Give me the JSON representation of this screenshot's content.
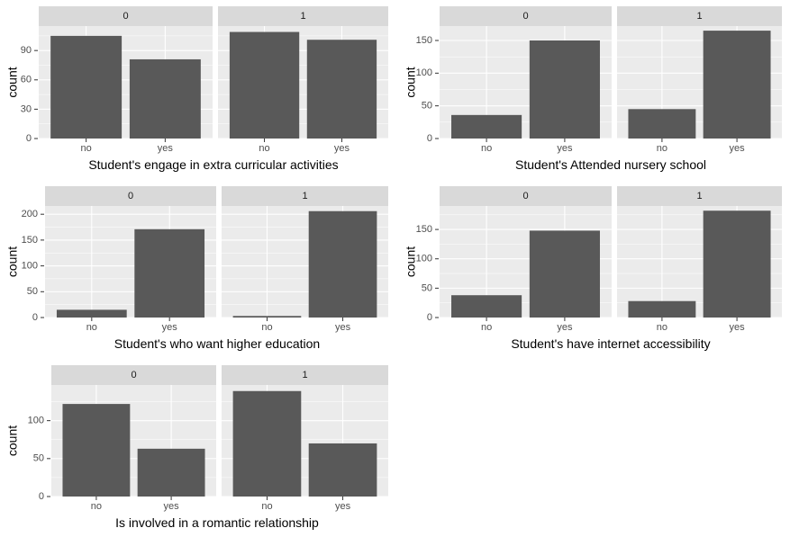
{
  "chart_data": [
    {
      "type": "bar",
      "xlabel": "Student's engage in extra curricular activities",
      "ylabel": "count",
      "ylim": [
        0,
        115
      ],
      "yticks": [
        0,
        30,
        60,
        90
      ],
      "categories": [
        "no",
        "yes"
      ],
      "facets": [
        {
          "name": "0",
          "values": [
            105,
            81
          ]
        },
        {
          "name": "1",
          "values": [
            109,
            101
          ]
        }
      ],
      "grid": true
    },
    {
      "type": "bar",
      "xlabel": "Student's Attended nursery school",
      "ylabel": "count",
      "ylim": [
        0,
        172
      ],
      "yticks": [
        0,
        50,
        100,
        150
      ],
      "categories": [
        "no",
        "yes"
      ],
      "facets": [
        {
          "name": "0",
          "values": [
            36,
            150
          ]
        },
        {
          "name": "1",
          "values": [
            45,
            165
          ]
        }
      ],
      "grid": true
    },
    {
      "type": "bar",
      "xlabel": "Student's who want higher education",
      "ylabel": "count",
      "ylim": [
        0,
        216
      ],
      "yticks": [
        0,
        50,
        100,
        150,
        200
      ],
      "categories": [
        "no",
        "yes"
      ],
      "facets": [
        {
          "name": "0",
          "values": [
            15,
            171
          ]
        },
        {
          "name": "1",
          "values": [
            3,
            206
          ]
        }
      ],
      "grid": true
    },
    {
      "type": "bar",
      "xlabel": "Student's have internet accessibility",
      "ylabel": "count",
      "ylim": [
        0,
        190
      ],
      "yticks": [
        0,
        50,
        100,
        150
      ],
      "categories": [
        "no",
        "yes"
      ],
      "facets": [
        {
          "name": "0",
          "values": [
            38,
            148
          ]
        },
        {
          "name": "1",
          "values": [
            28,
            182
          ]
        }
      ],
      "grid": true
    },
    {
      "type": "bar",
      "xlabel": "Is involved in a romantic relationship",
      "ylabel": "count",
      "ylim": [
        0,
        147
      ],
      "yticks": [
        0,
        50,
        100
      ],
      "categories": [
        "no",
        "yes"
      ],
      "facets": [
        {
          "name": "0",
          "values": [
            122,
            63
          ]
        },
        {
          "name": "1",
          "values": [
            139,
            70
          ]
        }
      ],
      "grid": true
    }
  ],
  "colors": {
    "bar": "#595959",
    "panel_bg": "#ebebeb",
    "strip_bg": "#d9d9d9",
    "grid": "#ffffff"
  }
}
